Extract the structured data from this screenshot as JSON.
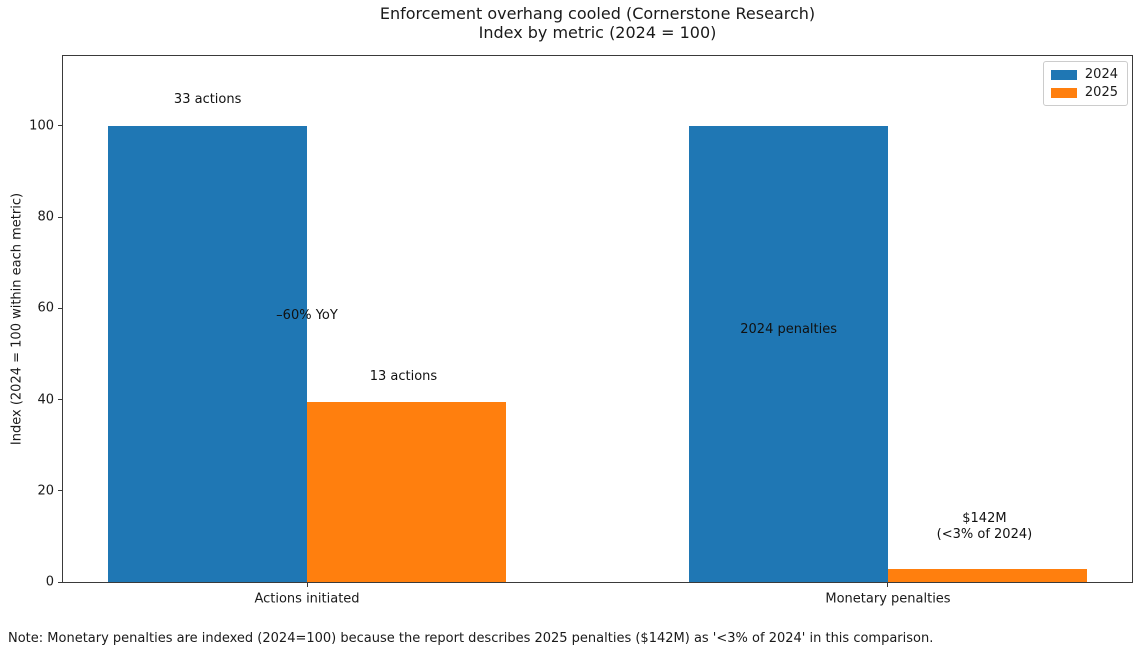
{
  "figure": {
    "title": "Enforcement overhang cooled (Cornerstone Research)",
    "subtitle": "Index by metric (2024 = 100)",
    "note": "Note: Monetary penalties are indexed (2024=100) because the report describes 2025 penalties ($142M) as '<3% of 2024' in this comparison."
  },
  "chart_data": {
    "type": "bar",
    "categories": [
      "Actions initiated",
      "Monetary penalties"
    ],
    "series": [
      {
        "name": "2024",
        "color": "#1f77b4",
        "values": [
          100,
          100
        ]
      },
      {
        "name": "2025",
        "color": "#ff7f0e",
        "values": [
          39.4,
          2.8
        ]
      }
    ],
    "ylabel": "Index (2024 = 100 within each metric)",
    "xlabel": "",
    "yticks": [
      0,
      20,
      40,
      60,
      80,
      100
    ],
    "ylim": [
      0,
      115.3
    ],
    "xlim": [
      -0.42,
      1.42
    ],
    "bar_width": 0.342,
    "bar_offsets": [
      -0.171,
      0.171
    ],
    "grid": false,
    "legend_position": "upper right",
    "annotations": [
      {
        "text": "33 actions",
        "x": -0.171,
        "y": 105.7
      },
      {
        "text": "–60% YoY",
        "x": 0.0,
        "y": 58.3
      },
      {
        "text": "13 actions",
        "x": 0.166,
        "y": 45.0
      },
      {
        "text": "2024 penalties",
        "x": 0.829,
        "y": 55.2
      },
      {
        "text": "$142M\n(<3% of 2024)",
        "x": 1.166,
        "y": 12.0
      }
    ]
  }
}
